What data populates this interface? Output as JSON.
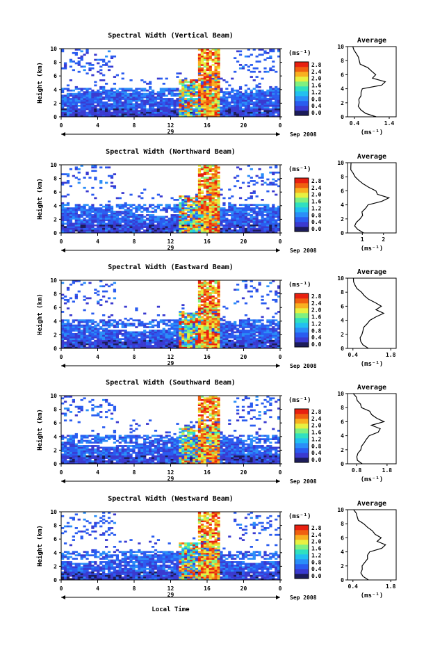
{
  "figure": {
    "xlabel": "Local Time",
    "date_label": "Sep 2008",
    "day_label": "29",
    "unit_label": "(ms⁻¹)",
    "avg_title": "Average",
    "ylabel": "Height (km)"
  },
  "colorbar": {
    "ticks": [
      "2.8",
      "2.4",
      "2.0",
      "1.6",
      "1.2",
      "0.8",
      "0.4",
      "0.0"
    ],
    "colors": [
      "#1c1c5a",
      "#3a3ad0",
      "#2a5cf0",
      "#2a8ef8",
      "#22c0f0",
      "#30e0c0",
      "#80f080",
      "#e8f040",
      "#f8b020",
      "#f06010",
      "#e82010"
    ]
  },
  "chart_data": [
    {
      "type": "heatmap",
      "title": "Spectral Width (Vertical Beam)",
      "xlabel": "",
      "ylabel": "Height (km)",
      "x_ticks": [
        "0",
        "4",
        "8",
        "12",
        "16",
        "20",
        "0"
      ],
      "xlim": [
        0,
        24
      ],
      "y_ticks": [
        "0",
        "2",
        "4",
        "6",
        "8",
        "10"
      ],
      "ylim": [
        0,
        10
      ],
      "z_unit": "ms-1",
      "zlim": [
        0,
        2.8
      ],
      "profile": {
        "title": "Average",
        "xlabel": "(ms⁻¹)",
        "x_ticks": [
          "0.4",
          "1.4"
        ],
        "xlim": [
          0.2,
          1.6
        ],
        "heights": [
          0,
          0.5,
          1,
          1.5,
          2,
          2.5,
          3,
          3.5,
          4,
          4.5,
          5,
          5.5,
          6,
          6.5,
          7,
          7.5,
          8,
          8.5,
          9,
          9.5,
          10
        ],
        "values": [
          1.0,
          0.7,
          0.55,
          0.5,
          0.5,
          0.52,
          0.55,
          0.6,
          0.65,
          1.2,
          1.3,
          0.95,
          1.0,
          0.9,
          0.75,
          0.6,
          0.55,
          0.5,
          0.45,
          0.4,
          0.35
        ]
      }
    },
    {
      "type": "heatmap",
      "title": "Spectral Width (Northward Beam)",
      "xlabel": "",
      "ylabel": "Height (km)",
      "x_ticks": [
        "0",
        "4",
        "8",
        "12",
        "16",
        "20",
        "0"
      ],
      "xlim": [
        0,
        24
      ],
      "y_ticks": [
        "0",
        "2",
        "4",
        "6",
        "8",
        "10"
      ],
      "ylim": [
        0,
        10
      ],
      "z_unit": "ms-1",
      "zlim": [
        0,
        2.8
      ],
      "profile": {
        "title": "Average",
        "xlabel": "(ms⁻¹)",
        "x_ticks": [
          "1",
          "2"
        ],
        "xlim": [
          0.3,
          2.6
        ],
        "heights": [
          0,
          0.5,
          1,
          1.5,
          2,
          2.5,
          3,
          3.5,
          4,
          4.5,
          5,
          5.5,
          6,
          6.5,
          7,
          7.5,
          8,
          8.5,
          9,
          9.5,
          10
        ],
        "values": [
          1.1,
          0.8,
          0.7,
          0.75,
          0.85,
          0.95,
          1.0,
          1.1,
          1.3,
          1.9,
          2.2,
          1.7,
          1.6,
          1.3,
          1.0,
          0.8,
          0.7,
          0.6,
          0.5,
          0.45,
          0.4
        ]
      }
    },
    {
      "type": "heatmap",
      "title": "Spectral Width (Eastward Beam)",
      "xlabel": "",
      "ylabel": "Height (km)",
      "x_ticks": [
        "0",
        "4",
        "8",
        "12",
        "16",
        "20",
        "0"
      ],
      "xlim": [
        0,
        24
      ],
      "y_ticks": [
        "0",
        "2",
        "4",
        "6",
        "8",
        "10"
      ],
      "ylim": [
        0,
        10
      ],
      "z_unit": "ms-1",
      "zlim": [
        0,
        2.8
      ],
      "profile": {
        "title": "Average",
        "xlabel": "(ms⁻¹)",
        "x_ticks": [
          "0.4",
          "1.8"
        ],
        "xlim": [
          0.2,
          2.0
        ],
        "heights": [
          0,
          0.5,
          1,
          1.5,
          2,
          2.5,
          3,
          3.5,
          4,
          4.5,
          5,
          5.5,
          6,
          6.5,
          7,
          7.5,
          8,
          8.5,
          9,
          9.5,
          10
        ],
        "values": [
          1.0,
          0.75,
          0.65,
          0.7,
          0.75,
          0.8,
          0.85,
          0.9,
          1.0,
          1.3,
          1.5,
          1.3,
          1.4,
          1.2,
          1.0,
          0.8,
          0.7,
          0.6,
          0.5,
          0.45,
          0.4
        ]
      }
    },
    {
      "type": "heatmap",
      "title": "Spectral Width (Southward Beam)",
      "xlabel": "",
      "ylabel": "Height (km)",
      "x_ticks": [
        "0",
        "4",
        "8",
        "12",
        "16",
        "20",
        "0"
      ],
      "xlim": [
        0,
        24
      ],
      "y_ticks": [
        "0",
        "2",
        "4",
        "6",
        "8",
        "10"
      ],
      "ylim": [
        0,
        10
      ],
      "z_unit": "ms-1",
      "zlim": [
        0,
        2.8
      ],
      "profile": {
        "title": "Average",
        "xlabel": "(ms⁻¹)",
        "x_ticks": [
          "0.8",
          "1.8"
        ],
        "xlim": [
          0.5,
          2.1
        ],
        "heights": [
          0,
          0.5,
          1,
          1.5,
          2,
          2.5,
          3,
          3.5,
          4,
          4.5,
          5,
          5.5,
          6,
          6.5,
          7,
          7.5,
          8,
          8.5,
          9,
          9.5,
          10
        ],
        "values": [
          1.0,
          0.85,
          0.8,
          0.85,
          0.9,
          1.0,
          1.05,
          1.1,
          1.2,
          1.5,
          1.6,
          1.3,
          1.7,
          1.5,
          1.3,
          1.2,
          1.0,
          0.9,
          0.8,
          0.75,
          0.7
        ]
      }
    },
    {
      "type": "heatmap",
      "title": "Spectral Width (Westward Beam)",
      "xlabel": "Local Time",
      "ylabel": "Height (km)",
      "x_ticks": [
        "0",
        "4",
        "8",
        "12",
        "16",
        "20",
        "0"
      ],
      "xlim": [
        0,
        24
      ],
      "y_ticks": [
        "0",
        "2",
        "4",
        "6",
        "8",
        "10"
      ],
      "ylim": [
        0,
        10
      ],
      "z_unit": "ms-1",
      "zlim": [
        0,
        2.8
      ],
      "profile": {
        "title": "Average",
        "xlabel": "(ms⁻¹)",
        "x_ticks": [
          "0.4",
          "1.8"
        ],
        "xlim": [
          0.2,
          2.0
        ],
        "heights": [
          0,
          0.5,
          1,
          1.5,
          2,
          2.5,
          3,
          3.5,
          4,
          4.5,
          5,
          5.5,
          6,
          6.5,
          7,
          7.5,
          8,
          8.5,
          9,
          9.5,
          10
        ],
        "values": [
          1.0,
          0.75,
          0.65,
          0.7,
          0.75,
          0.8,
          0.9,
          0.95,
          1.0,
          1.5,
          1.6,
          1.3,
          1.4,
          1.25,
          1.1,
          0.9,
          0.75,
          0.65,
          0.55,
          0.5,
          0.45
        ]
      }
    }
  ]
}
